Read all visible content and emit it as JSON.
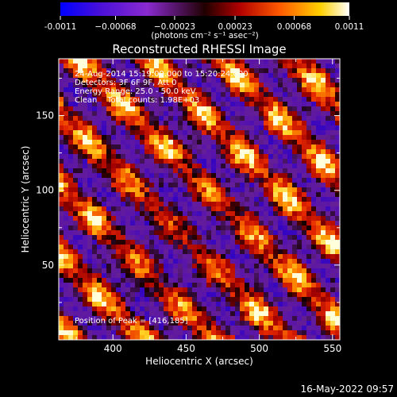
{
  "chart_data": {
    "type": "heatmap",
    "title": "Reconstructed RHESSI Image",
    "xlabel": "Heliocentric X (arcsec)",
    "ylabel": "Heliocentric Y (arcsec)",
    "xlim": [
      363,
      555
    ],
    "ylim": [
      0,
      188
    ],
    "x_ticks": [
      400,
      450,
      500,
      550
    ],
    "y_ticks": [
      50,
      100,
      150
    ],
    "colorbar": {
      "range": [
        -0.0011,
        0.0011
      ],
      "ticks": [
        -0.0011,
        -0.00068,
        -0.00023,
        0.00023,
        0.00068,
        0.0011
      ],
      "tick_labels": [
        "-0.0011",
        "−0.00068",
        "−0.00023",
        "0.00023",
        "0.00068",
        "0.0011"
      ],
      "unit_label": "(photons cm⁻² s⁻¹ asec⁻²)",
      "colors": [
        "#0000ff",
        "#5a00b8",
        "#8a2ad0",
        "#2a0000",
        "#c80000",
        "#ff6a00",
        "#ffc800",
        "#ffffff"
      ]
    },
    "annotations": {
      "time_range": "24-Aug-2014 15:19:00.000 to 15:20:24.000",
      "detectors": "Detectors: 3F 6F 9F, Att 0",
      "energy_range": "Energy Range: 25.0 - 50.0 keV",
      "method": "Clean    Total counts: 1.98E+03",
      "peak": "Position of Peak = [416,185]"
    },
    "pattern": {
      "description_of_structure": "diagonal streak pattern",
      "peak_position": [
        416,
        185
      ]
    }
  },
  "footer": {
    "date": "16-May-2022 09:57"
  }
}
